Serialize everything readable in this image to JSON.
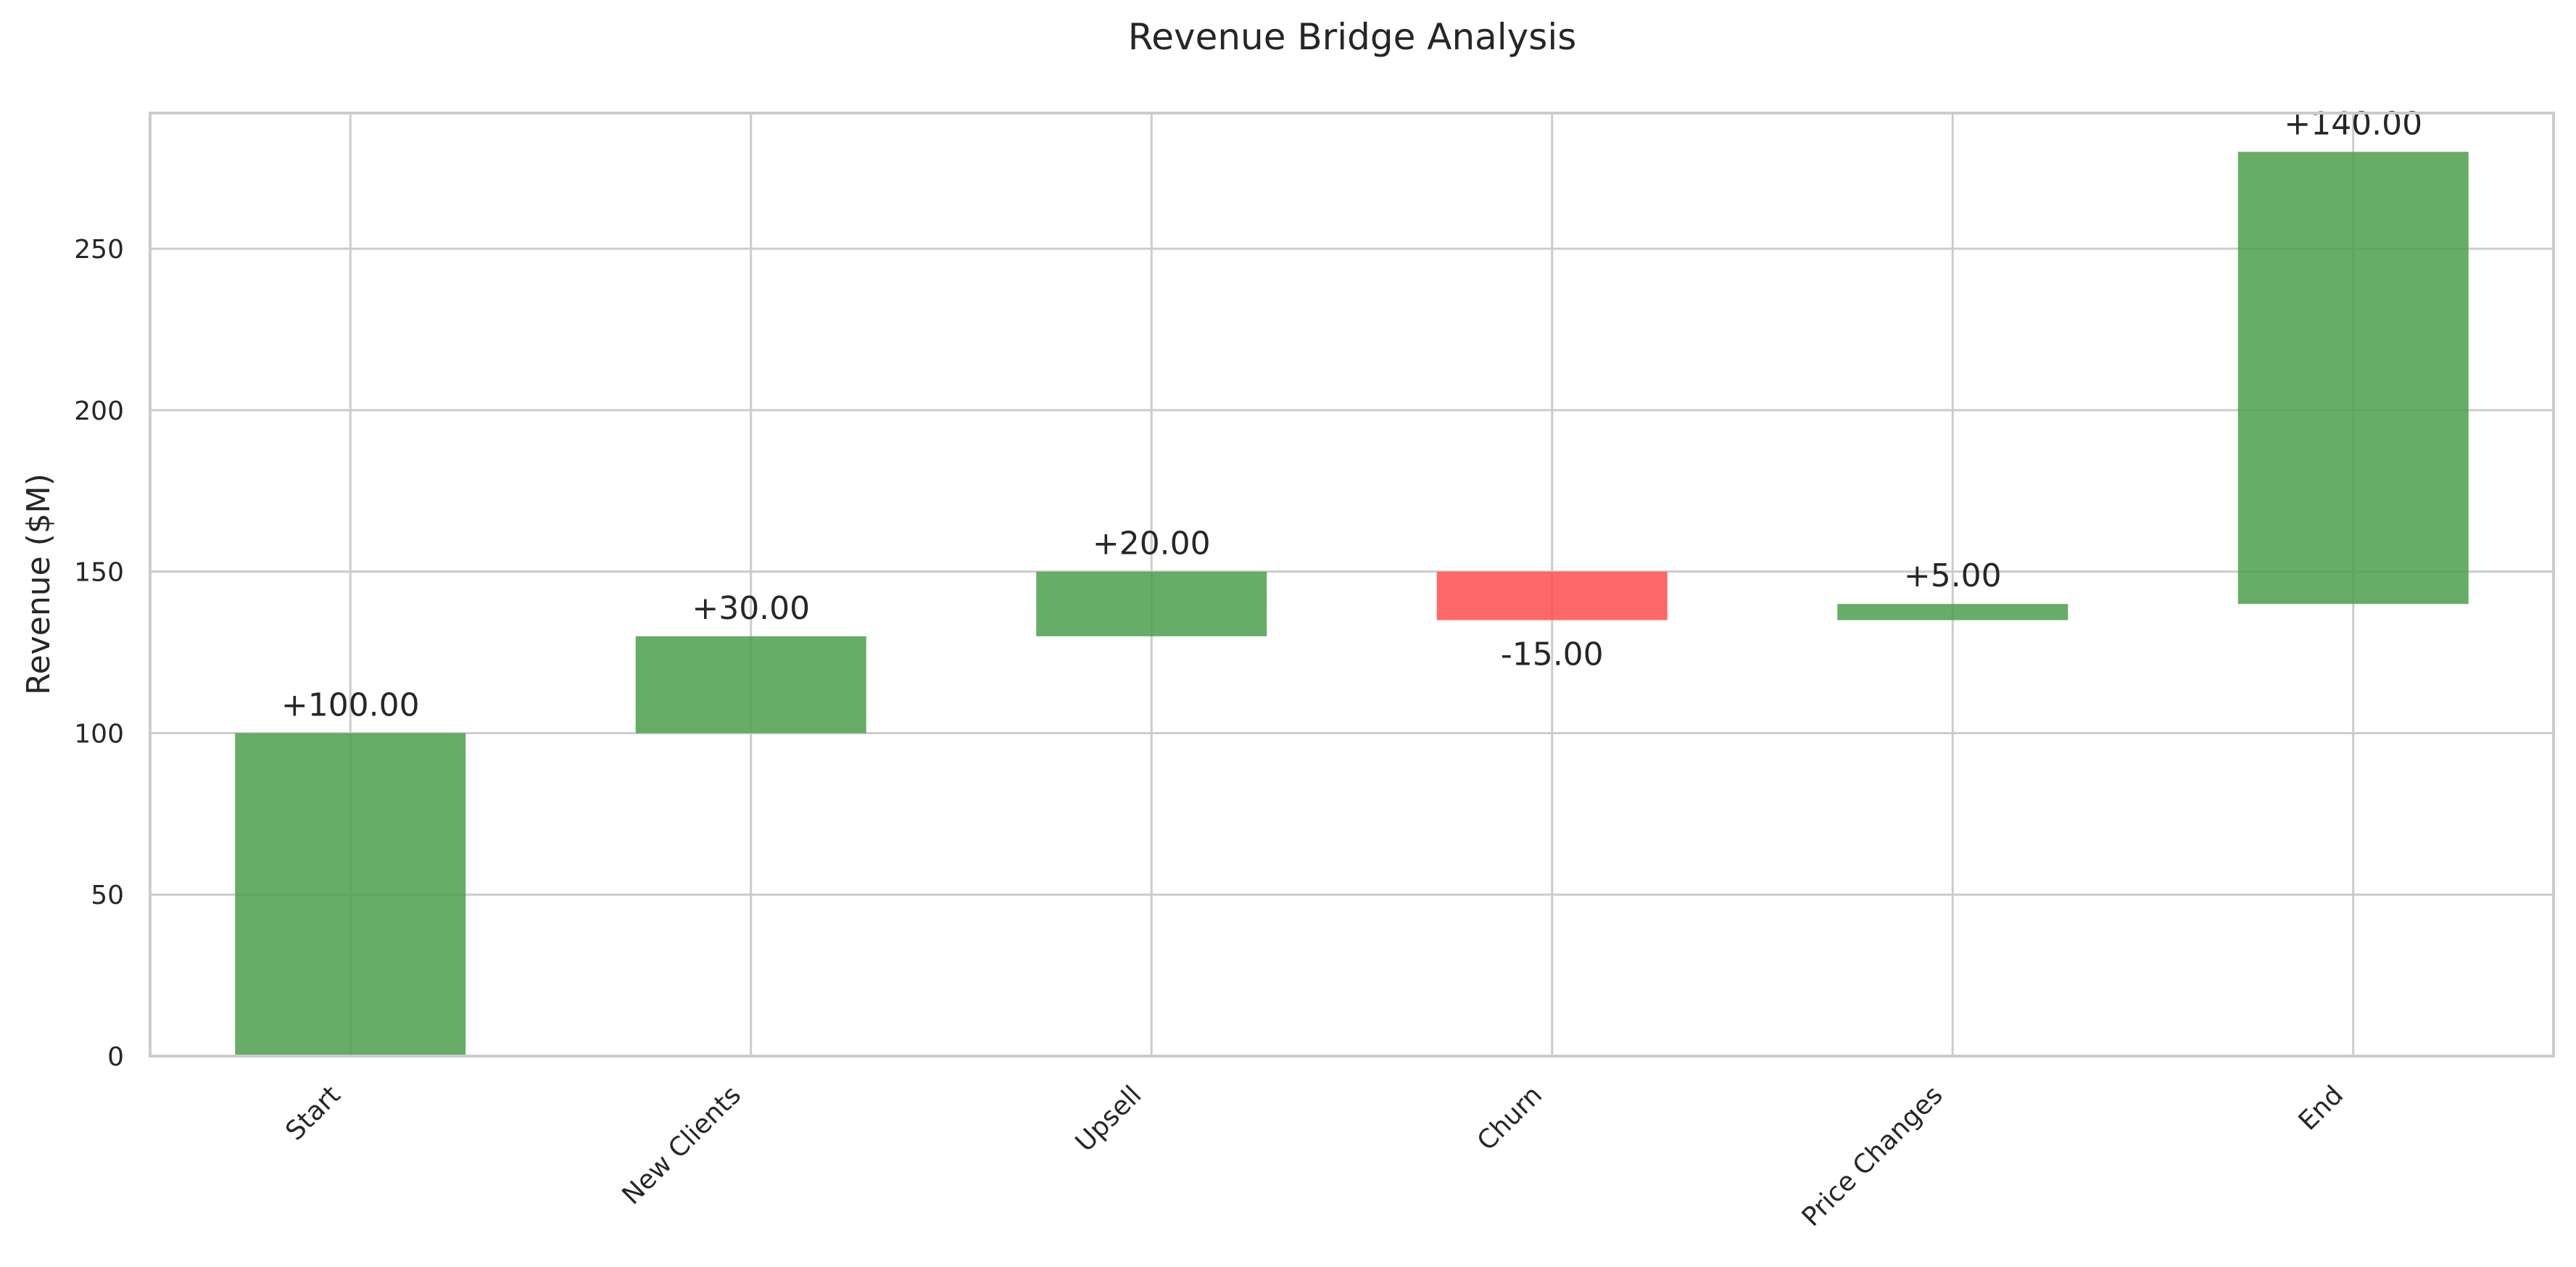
{
  "chart_data": {
    "type": "bar",
    "subtype": "waterfall",
    "title": "Revenue Bridge Analysis",
    "ylabel": "Revenue ($M)",
    "xlabel": "",
    "ylim": [
      0,
      292
    ],
    "yticks": [
      0,
      50,
      100,
      150,
      200,
      250
    ],
    "grid": true,
    "categories": [
      "Start",
      "New Clients",
      "Upsell",
      "Churn",
      "Price Changes",
      "End"
    ],
    "bars": [
      {
        "category": "Start",
        "base": 0,
        "top": 100,
        "label": "+100.00"
      },
      {
        "category": "New Clients",
        "base": 100,
        "top": 130,
        "label": "+30.00"
      },
      {
        "category": "Upsell",
        "base": 130,
        "top": 150,
        "label": "+20.00"
      },
      {
        "category": "Churn",
        "base": 135,
        "top": 150,
        "label": "-15.00"
      },
      {
        "category": "Price Changes",
        "base": 135,
        "top": 140,
        "label": "+5.00"
      },
      {
        "category": "End",
        "base": 140,
        "top": 280,
        "label": "+140.00"
      }
    ],
    "colors": {
      "positive": "#4c9e4c",
      "negative": "#ff4d4d"
    }
  }
}
